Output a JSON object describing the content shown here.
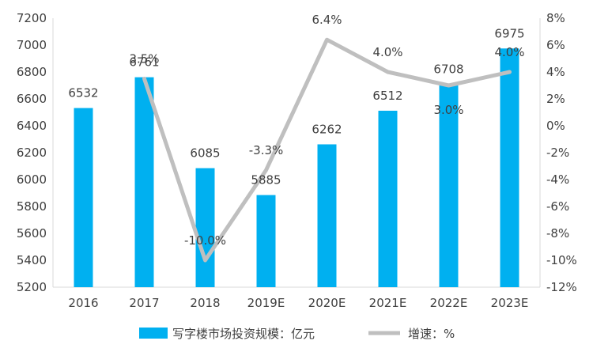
{
  "chart_data": {
    "type": "bar",
    "categories": [
      "2016",
      "2017",
      "2018",
      "2019E",
      "2020E",
      "2021E",
      "2022E",
      "2023E"
    ],
    "series": [
      {
        "name": "写字楼市场投资规模：亿元",
        "type": "bar",
        "axis": "left",
        "values": [
          6532,
          6761,
          6085,
          5885,
          6262,
          6512,
          6708,
          6975
        ],
        "labels": [
          "6532",
          "6761",
          "6085",
          "5885",
          "6262",
          "6512",
          "6708",
          "6975"
        ],
        "color": "#00B0F0"
      },
      {
        "name": "增速：%",
        "type": "line",
        "axis": "right",
        "values": [
          null,
          3.5,
          -10.0,
          -3.3,
          6.4,
          4.0,
          3.0,
          4.0
        ],
        "labels": [
          "",
          "3.5%",
          "-10.0%",
          "-3.3%",
          "6.4%",
          "4.0%",
          "3.0%",
          "4.0%"
        ],
        "color": "#BFBFBF"
      }
    ],
    "y_left": {
      "min": 5200,
      "max": 7200,
      "step": 200,
      "ticks": [
        "5200",
        "5400",
        "5600",
        "5800",
        "6000",
        "6200",
        "6400",
        "6600",
        "6800",
        "7000",
        "7200"
      ]
    },
    "y_right": {
      "min": -12,
      "max": 8,
      "step": 2,
      "ticks": [
        "-12%",
        "-10%",
        "-8%",
        "-6%",
        "-4%",
        "-2%",
        "0%",
        "2%",
        "4%",
        "6%",
        "8%"
      ]
    },
    "grid": false,
    "legend_position": "bottom"
  }
}
